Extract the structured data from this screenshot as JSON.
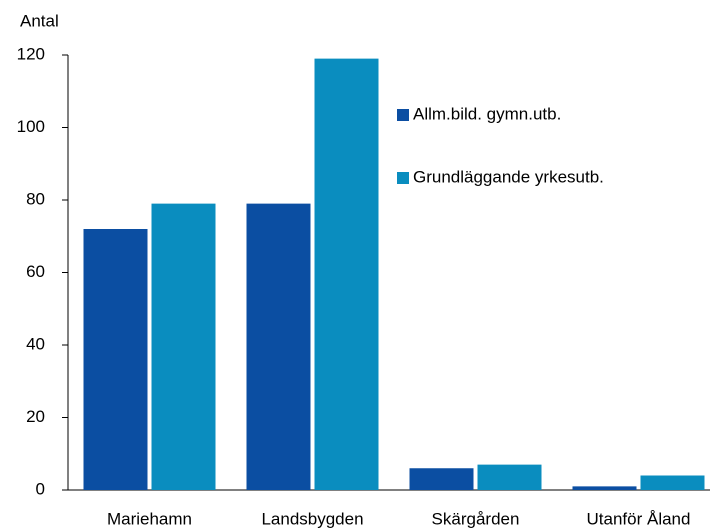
{
  "chart_data": {
    "type": "bar",
    "y_label": "Antal",
    "categories": [
      "Mariehamn",
      "Landsbygden",
      "Skärgården",
      "Utanför Åland"
    ],
    "series": [
      {
        "name": "Allm.bild. gymn.utb.",
        "color": "#0b4ea2",
        "values": [
          72,
          79,
          6,
          1
        ]
      },
      {
        "name": "Grundläggande yrkesutb.",
        "color": "#0a8dbf",
        "values": [
          79,
          119,
          7,
          4
        ]
      }
    ],
    "ylim": [
      0,
      120
    ],
    "yticks": [
      0,
      20,
      40,
      60,
      80,
      100,
      120
    ],
    "grid": false
  }
}
